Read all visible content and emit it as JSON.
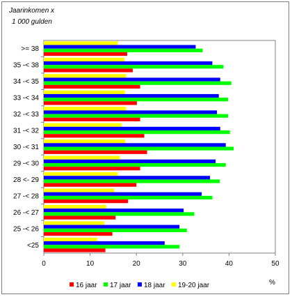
{
  "chart_data": {
    "type": "bar",
    "orientation": "horizontal",
    "title_line1": "Jaarinkomen x",
    "title_line2": "1 000 gulden",
    "xlabel": "%",
    "xlim": [
      0,
      50
    ],
    "xticks": [
      "0",
      "10",
      "20",
      "30",
      "40",
      "50"
    ],
    "grid": false,
    "legend_position": "bottom",
    "categories": [
      ">= 38",
      "35 -< 38",
      "34 -< 35",
      "33 -< 34",
      "32 -< 33",
      "31 -< 32",
      "30 -< 31",
      "29 -< 30",
      "28 <- 29",
      "27 -< 28",
      "26 -< 27",
      "25 -< 26",
      "<25"
    ],
    "series": [
      {
        "name": "16 jaar",
        "color": "#ff0000",
        "values": [
          18,
          19.2,
          20.8,
          20.1,
          20.8,
          21.7,
          22.3,
          20.8,
          20.0,
          18.2,
          15.5,
          14.8,
          13.3
        ]
      },
      {
        "name": "17 jaar",
        "color": "#00ff00",
        "values": [
          34.3,
          38.8,
          40.5,
          39.8,
          39.8,
          40.2,
          41.0,
          39.3,
          38.0,
          36.4,
          32.5,
          30.9,
          29.3
        ]
      },
      {
        "name": "18 jaar",
        "color": "#0000ff",
        "values": [
          32.8,
          36.4,
          38.1,
          37.8,
          37.4,
          38.1,
          39.3,
          37.1,
          35.9,
          34.1,
          30.2,
          29.3,
          26.1
        ]
      },
      {
        "name": "19-20 jaar",
        "color": "#ffff00",
        "values": [
          16.0,
          17.4,
          17.8,
          17.5,
          17.8,
          16.8,
          17.6,
          16.4,
          16.0,
          15.2,
          13.5,
          13.1,
          11.5
        ]
      }
    ]
  }
}
